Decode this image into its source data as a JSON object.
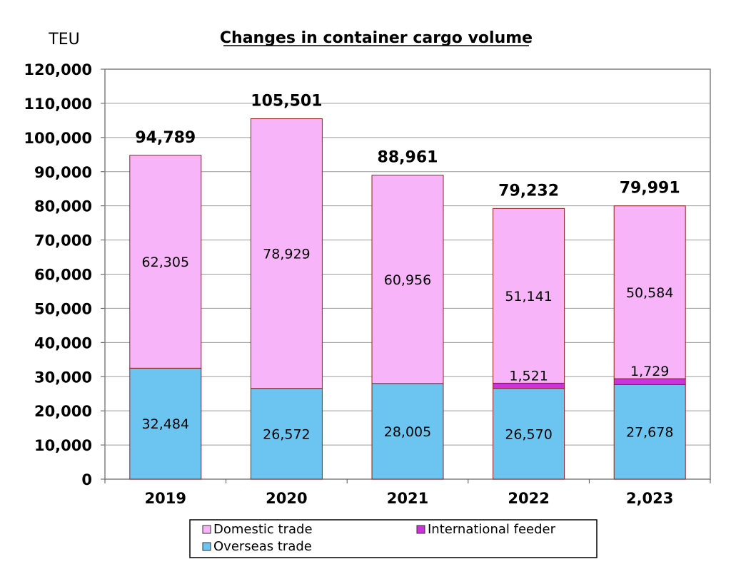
{
  "chart_data": {
    "type": "bar",
    "stacked": true,
    "title": "Changes in container cargo volume",
    "ylabel": "TEU",
    "ylim": [
      0,
      120000
    ],
    "yticks": [
      0,
      10000,
      20000,
      30000,
      40000,
      50000,
      60000,
      70000,
      80000,
      90000,
      100000,
      110000,
      120000
    ],
    "ytick_labels": [
      "0",
      "10,000",
      "20,000",
      "30,000",
      "40,000",
      "50,000",
      "60,000",
      "70,000",
      "80,000",
      "90,000",
      "100,000",
      "110,000",
      "120,000"
    ],
    "categories": [
      "2019",
      "2020",
      "2021",
      "2022",
      "2,023"
    ],
    "series": [
      {
        "name": "Overseas trade",
        "color": "#6CC5F0",
        "values": [
          32484,
          26572,
          28005,
          26570,
          27678
        ],
        "labels": [
          "32,484",
          "26,572",
          "28,005",
          "26,570",
          "27,678"
        ]
      },
      {
        "name": "International feeder",
        "color": "#CC33DD",
        "values": [
          0,
          0,
          0,
          1521,
          1729
        ],
        "labels": [
          "",
          "",
          "",
          "1,521",
          "1,729"
        ]
      },
      {
        "name": "Domestic trade",
        "color": "#F8B4F8",
        "values": [
          62305,
          78929,
          60956,
          51141,
          50584
        ],
        "labels": [
          "62,305",
          "78,929",
          "60,956",
          "51,141",
          "50,584"
        ]
      }
    ],
    "totals": [
      "94,789",
      "105,501",
      "88,961",
      "79,232",
      "79,991"
    ],
    "grid": true,
    "legend_position": "bottom",
    "legend_order": [
      "Domestic trade",
      "International feeder",
      "Overseas trade"
    ]
  }
}
